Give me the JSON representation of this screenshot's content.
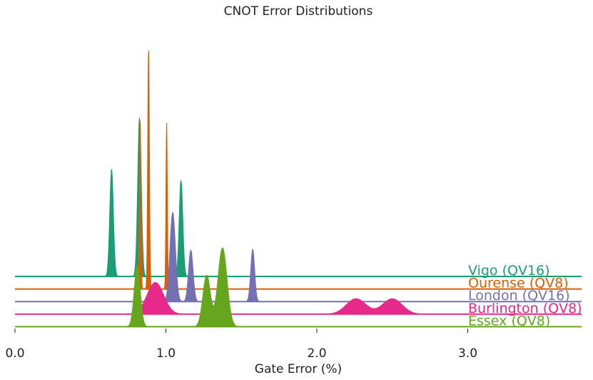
{
  "chart_data": {
    "type": "area",
    "title": "CNOT Error Distributions",
    "xlabel": "Gate Error (%)",
    "ylabel": "",
    "xlim": [
      0.0,
      3.75
    ],
    "xticks": [
      {
        "value": 0.0,
        "label": "0.0"
      },
      {
        "value": 1.0,
        "label": "1.0"
      },
      {
        "value": 2.0,
        "label": "2.0"
      },
      {
        "value": 3.0,
        "label": "3.0"
      }
    ],
    "grid": false,
    "legend": "none (series labels placed at right end of each baseline)",
    "series": [
      {
        "name": "Vigo (QV16)",
        "color": "#1b9e77",
        "peaks": [
          {
            "mu": 0.64,
            "sigma": 0.012,
            "height": 0.125
          },
          {
            "mu": 0.825,
            "sigma": 0.012,
            "height": 0.185
          },
          {
            "mu": 1.1,
            "sigma": 0.012,
            "height": 0.112
          }
        ]
      },
      {
        "name": "Ourense (QV8)",
        "color": "#d95f02",
        "peaks": [
          {
            "mu": 0.83,
            "sigma": 0.0045,
            "height": 0.195
          },
          {
            "mu": 0.885,
            "sigma": 0.0055,
            "height": 0.282
          },
          {
            "mu": 1.005,
            "sigma": 0.0045,
            "height": 0.195
          }
        ]
      },
      {
        "name": "London (QV16)",
        "color": "#7570b3",
        "peaks": [
          {
            "mu": 1.045,
            "sigma": 0.018,
            "height": 0.104
          },
          {
            "mu": 1.165,
            "sigma": 0.015,
            "height": 0.06
          },
          {
            "mu": 1.575,
            "sigma": 0.013,
            "height": 0.061
          }
        ]
      },
      {
        "name": "Burlington (QV8)",
        "color": "#e7298a",
        "peaks": [
          {
            "mu": 0.93,
            "sigma": 0.055,
            "height": 0.037
          },
          {
            "mu": 2.26,
            "sigma": 0.065,
            "height": 0.018
          },
          {
            "mu": 2.5,
            "sigma": 0.065,
            "height": 0.018
          }
        ]
      },
      {
        "name": "Essex (QV8)",
        "color": "#66a61e",
        "peaks": [
          {
            "mu": 0.81,
            "sigma": 0.02,
            "height": 0.071
          },
          {
            "mu": 1.27,
            "sigma": 0.025,
            "height": 0.06
          },
          {
            "mu": 1.375,
            "sigma": 0.03,
            "height": 0.092
          }
        ]
      }
    ]
  }
}
